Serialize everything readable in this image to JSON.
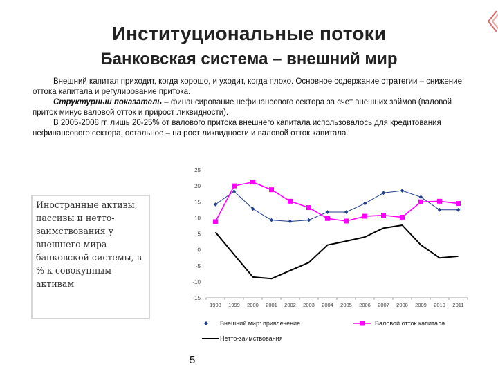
{
  "slide": {
    "title": "Институциональные потоки",
    "subtitle": "Банковская система – внешний мир",
    "paragraph1": "Внешний капитал приходит, когда хорошо, и уходит, когда плохо. Основное содержание стратегии – снижение оттока капитала и регулирование притока.",
    "paragraph2_em": "Структурный показатель",
    "paragraph2_rest": " – финансирование нефинансового сектора за счет внешних займов (валовой приток минус валовой отток и прирост ликвидности).",
    "paragraph3": "В 2005-2008 гг. лишь 20-25% от валового притока внешнего капитала использовалось для кредитования нефинансового сектора, остальное – на рост ликвидности и валовой отток капитала.",
    "side_note": "Иностранные активы, пассивы и нетто-заимствования у внешнего мира банковской системы, в % к совокупным активам",
    "page_number": "5"
  },
  "colors": {
    "series_inflow": "#1f3f8f",
    "series_outflow": "#ff00ff",
    "series_net": "#000000",
    "axis": "#888888"
  },
  "chart_data": {
    "type": "line",
    "x": [
      "1998",
      "1999",
      "2000",
      "2001",
      "2002",
      "2003",
      "2004",
      "2005",
      "2006",
      "2007",
      "2008",
      "2009",
      "2010",
      "2011"
    ],
    "ylim": [
      -15,
      25
    ],
    "yticks": [
      "25",
      "20",
      "15",
      "10",
      "5",
      "0",
      "-5",
      "-10",
      "-15"
    ],
    "series": [
      {
        "name": "Внешний мир: привлечение",
        "marker": "diamond",
        "values": [
          14.2,
          18.3,
          12.8,
          9.3,
          8.9,
          9.3,
          11.8,
          11.8,
          14.5,
          17.8,
          18.5,
          16.5,
          12.5,
          12.5
        ]
      },
      {
        "name": "Валовой отток капитала",
        "marker": "square",
        "values": [
          8.8,
          20.0,
          21.2,
          18.8,
          15.2,
          13.2,
          9.8,
          9.0,
          10.5,
          10.8,
          10.2,
          15.0,
          15.2,
          14.5
        ]
      },
      {
        "name": "Нетто-заимствования",
        "marker": "none",
        "values": [
          5.5,
          -1.5,
          -8.5,
          -9.0,
          -6.5,
          -4.0,
          1.5,
          2.7,
          4.0,
          6.8,
          7.7,
          1.5,
          -2.5,
          -2.0
        ]
      }
    ]
  }
}
